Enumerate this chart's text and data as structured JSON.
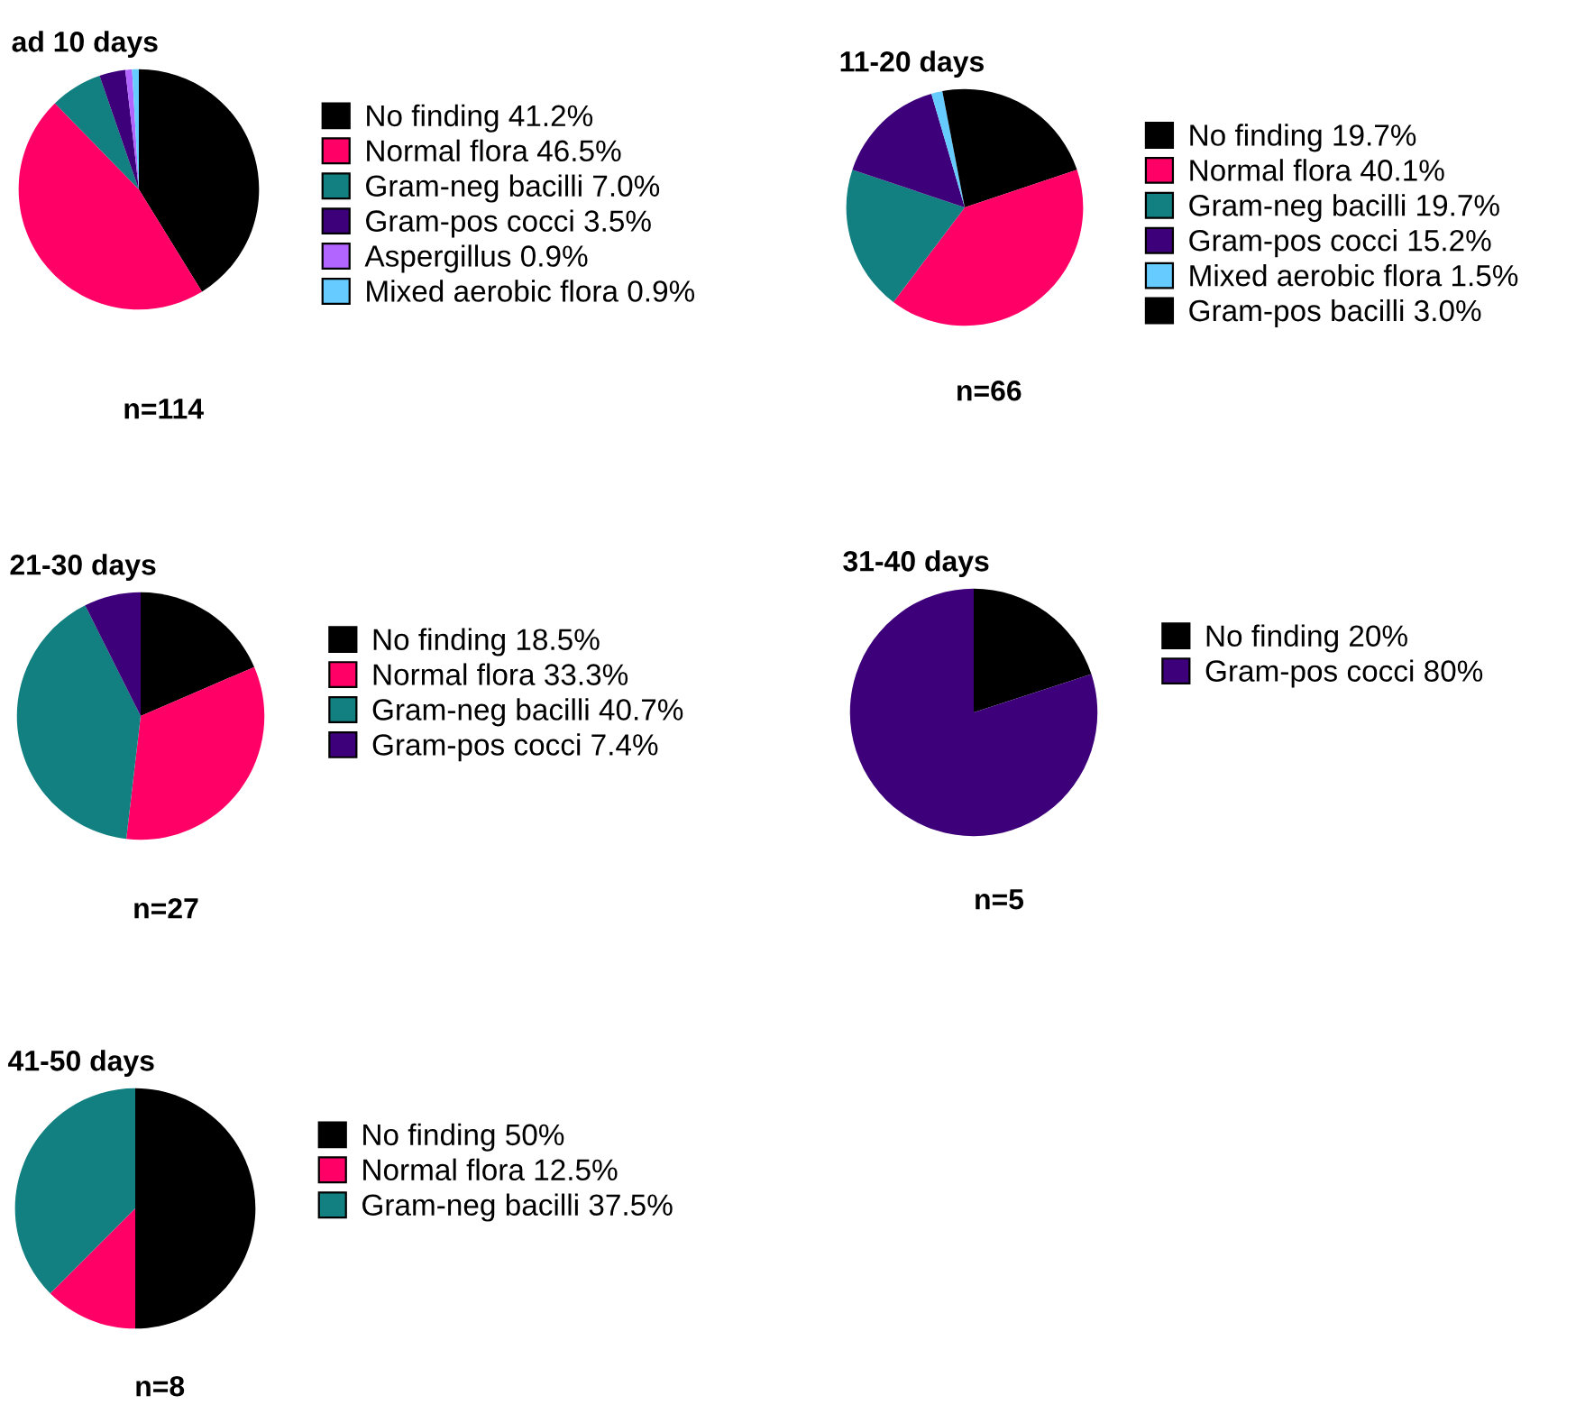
{
  "chart_data": [
    {
      "type": "pie",
      "title": "ad 10 days",
      "categories": [
        "No finding",
        "Normal flora",
        "Gram-neg bacilli",
        "Gram-pos cocci",
        "Aspergillus",
        "Mixed aerobic flora"
      ],
      "values": [
        41.2,
        46.5,
        7.0,
        3.5,
        0.9,
        0.9
      ],
      "value_labels": [
        "41.2%",
        "46.5%",
        "7.0%",
        "3.5%",
        "0.9%",
        "0.9%"
      ],
      "colors": [
        "#000000",
        "#ff0066",
        "#128080",
        "#3d007a",
        "#b266ff",
        "#66ccff"
      ],
      "legend": "right",
      "annotations": [
        "n=114"
      ]
    },
    {
      "type": "pie",
      "title": "11-20 days",
      "categories": [
        "No finding",
        "Normal flora",
        "Gram-neg bacilli",
        "Gram-pos cocci",
        "Mixed aerobic flora",
        "Gram-pos bacilli"
      ],
      "values": [
        19.7,
        40.1,
        19.7,
        15.2,
        1.5,
        3.0
      ],
      "value_labels": [
        "19.7%",
        "40.1%",
        "19.7%",
        "15.2%",
        "1.5%",
        "3.0%"
      ],
      "colors": [
        "#000000",
        "#ff0066",
        "#128080",
        "#3d007a",
        "#66ccff",
        "#000000"
      ],
      "legend": "right",
      "annotations": [
        "n=66"
      ]
    },
    {
      "type": "pie",
      "title": "21-30 days",
      "categories": [
        "No finding",
        "Normal flora",
        "Gram-neg bacilli",
        "Gram-pos cocci"
      ],
      "values": [
        18.5,
        33.3,
        40.7,
        7.4
      ],
      "value_labels": [
        "18.5%",
        "33.3%",
        "40.7%",
        "7.4%"
      ],
      "colors": [
        "#000000",
        "#ff0066",
        "#128080",
        "#3d007a"
      ],
      "legend": "right",
      "annotations": [
        "n=27"
      ]
    },
    {
      "type": "pie",
      "title": "31-40 days",
      "categories": [
        "No finding",
        "Gram-pos cocci"
      ],
      "values": [
        20,
        80
      ],
      "value_labels": [
        "20%",
        "80%"
      ],
      "colors": [
        "#000000",
        "#3d007a"
      ],
      "legend": "right",
      "annotations": [
        "n=5"
      ]
    },
    {
      "type": "pie",
      "title": "41-50 days",
      "categories": [
        "No finding",
        "Normal flora",
        "Gram-neg bacilli"
      ],
      "values": [
        50,
        12.5,
        37.5
      ],
      "value_labels": [
        "50%",
        "12.5%",
        "37.5%"
      ],
      "colors": [
        "#000000",
        "#ff0066",
        "#128080"
      ],
      "legend": "right",
      "annotations": [
        "n=8"
      ]
    }
  ]
}
